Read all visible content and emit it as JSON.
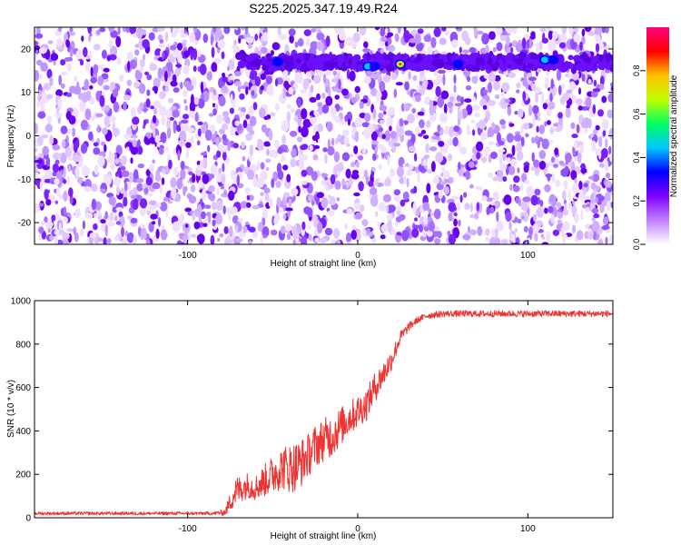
{
  "title": "S225.2025.347.19.49.R24",
  "chart_data": [
    {
      "type": "heatmap",
      "xlabel": "Height of straight line (km)",
      "ylabel": "Frequency (Hz)",
      "xlim": [
        -190,
        150
      ],
      "ylim": [
        -25,
        25
      ],
      "xticks": [
        -100,
        0,
        100
      ],
      "xtick_labels": [
        "-100",
        "0",
        "100"
      ],
      "yticks": [
        20,
        10,
        0,
        -10,
        -20
      ],
      "ytick_labels": [
        "20",
        "10",
        "0",
        "-10",
        "-20"
      ],
      "colorbar": {
        "label": "Normalized spectral amplitude",
        "range": [
          0,
          1
        ],
        "ticks": [
          0.0,
          0.2,
          0.4,
          0.6,
          0.8
        ],
        "tick_labels": [
          "0.0",
          "0.2",
          "0.4",
          "0.6",
          "0.8"
        ],
        "colormap": [
          "#ffffff",
          "#c080ff",
          "#8000ff",
          "#0000ff",
          "#00c8ff",
          "#00ff60",
          "#c0ff00",
          "#ffc000",
          "#ff0000",
          "#ff0080"
        ]
      },
      "band": {
        "freq_hz": 17,
        "x_start": -70,
        "x_end": 150
      },
      "peaks": [
        {
          "x": -47,
          "y": 17,
          "value": 0.3
        },
        {
          "x": 6,
          "y": 16,
          "value": 0.35
        },
        {
          "x": 10,
          "y": 16,
          "value": 0.3
        },
        {
          "x": 25,
          "y": 16.5,
          "value": 0.8
        },
        {
          "x": 59,
          "y": 16.5,
          "value": 0.3
        },
        {
          "x": 110,
          "y": 17.5,
          "value": 0.4
        },
        {
          "x": 115,
          "y": 17.5,
          "value": 0.3
        }
      ]
    },
    {
      "type": "line",
      "xlabel": "Height of straight line (km)",
      "ylabel": "SNR (10 * v/v)",
      "xlim": [
        -190,
        150
      ],
      "ylim": [
        0,
        1000
      ],
      "xticks": [
        -100,
        0,
        100
      ],
      "xtick_labels": [
        "-100",
        "0",
        "100"
      ],
      "yticks": [
        0,
        200,
        400,
        600,
        800,
        1000
      ],
      "ytick_labels": [
        "0",
        "200",
        "400",
        "600",
        "800",
        "1000"
      ],
      "series": [
        {
          "color": "#ee3333",
          "x": [
            -190,
            -150,
            -110,
            -85,
            -78,
            -72,
            -65,
            -60,
            -55,
            -50,
            -45,
            -40,
            -35,
            -30,
            -25,
            -20,
            -15,
            -10,
            -5,
            0,
            5,
            10,
            15,
            20,
            25,
            30,
            35,
            40,
            50,
            60,
            80,
            100,
            120,
            150
          ],
          "y": [
            20,
            20,
            20,
            20,
            25,
            120,
            150,
            140,
            170,
            200,
            230,
            230,
            240,
            280,
            330,
            360,
            380,
            420,
            460,
            490,
            520,
            600,
            660,
            730,
            830,
            880,
            910,
            930,
            940,
            940,
            940,
            940,
            940,
            940
          ],
          "noise": [
            15,
            15,
            15,
            15,
            30,
            140,
            120,
            120,
            150,
            180,
            200,
            230,
            240,
            200,
            200,
            200,
            200,
            180,
            160,
            150,
            150,
            140,
            120,
            100,
            60,
            40,
            30,
            30,
            30,
            30,
            30,
            30,
            30,
            30
          ]
        }
      ]
    }
  ]
}
